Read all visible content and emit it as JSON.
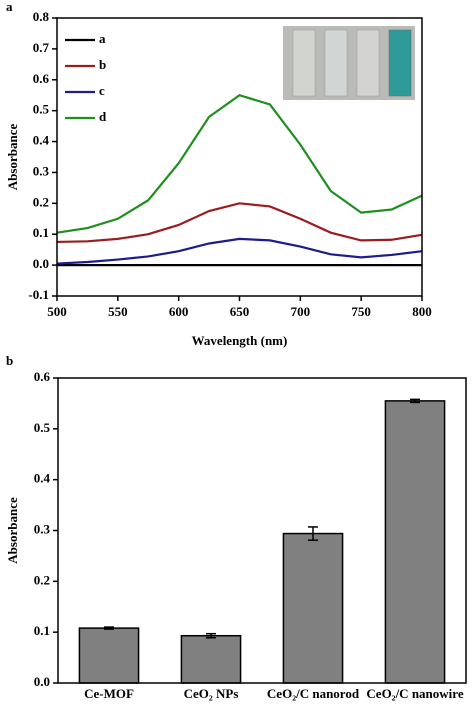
{
  "chart_data": [
    {
      "panel_label": "a",
      "type": "line",
      "x_label": "Wavelength (nm)",
      "y_label": "Absorbance",
      "x": [
        500,
        525,
        550,
        575,
        600,
        625,
        650,
        675,
        700,
        725,
        750,
        775,
        800
      ],
      "series": [
        {
          "name": "a",
          "color": "#000000",
          "values": [
            0,
            0,
            0,
            0,
            0,
            0,
            0,
            0,
            0,
            0,
            0,
            0,
            0
          ]
        },
        {
          "name": "b",
          "color": "#9b1c1c",
          "values": [
            0.075,
            0.077,
            0.085,
            0.1,
            0.13,
            0.175,
            0.2,
            0.19,
            0.15,
            0.105,
            0.08,
            0.082,
            0.098
          ]
        },
        {
          "name": "c",
          "color": "#1c1c8c",
          "values": [
            0.005,
            0.01,
            0.018,
            0.028,
            0.045,
            0.07,
            0.085,
            0.08,
            0.06,
            0.035,
            0.025,
            0.033,
            0.045
          ]
        },
        {
          "name": "d",
          "color": "#1f8f1f",
          "values": [
            0.105,
            0.12,
            0.15,
            0.21,
            0.33,
            0.48,
            0.55,
            0.52,
            0.39,
            0.24,
            0.17,
            0.18,
            0.225
          ]
        }
      ],
      "xlim": [
        500,
        800
      ],
      "xticks": [
        500,
        550,
        600,
        650,
        700,
        750,
        800
      ],
      "ylim": [
        -0.1,
        0.8
      ],
      "yticks": [
        -0.1,
        {
          "value": 0,
          "label": "0.0"
        },
        0.1,
        0.2,
        0.3,
        0.4,
        0.5,
        0.6,
        0.7,
        0.8
      ],
      "legend": "upper left"
    },
    {
      "panel_label": "b",
      "type": "bar",
      "y_label": "Absorbance",
      "categories": [
        "Ce-MOF",
        "CeO₂ NPs",
        "CeO₂/C nanorod",
        "CeO₂/C nanowire"
      ],
      "values": [
        0.108,
        0.093,
        0.294,
        0.555
      ],
      "errors": [
        0.002,
        0.004,
        0.013,
        0.003
      ],
      "color": "#808080",
      "ylim": [
        0,
        0.6
      ],
      "yticks": [
        {
          "value": 0,
          "label": "0.0"
        },
        0.1,
        0.2,
        0.3,
        0.4,
        0.5,
        0.6
      ]
    }
  ]
}
